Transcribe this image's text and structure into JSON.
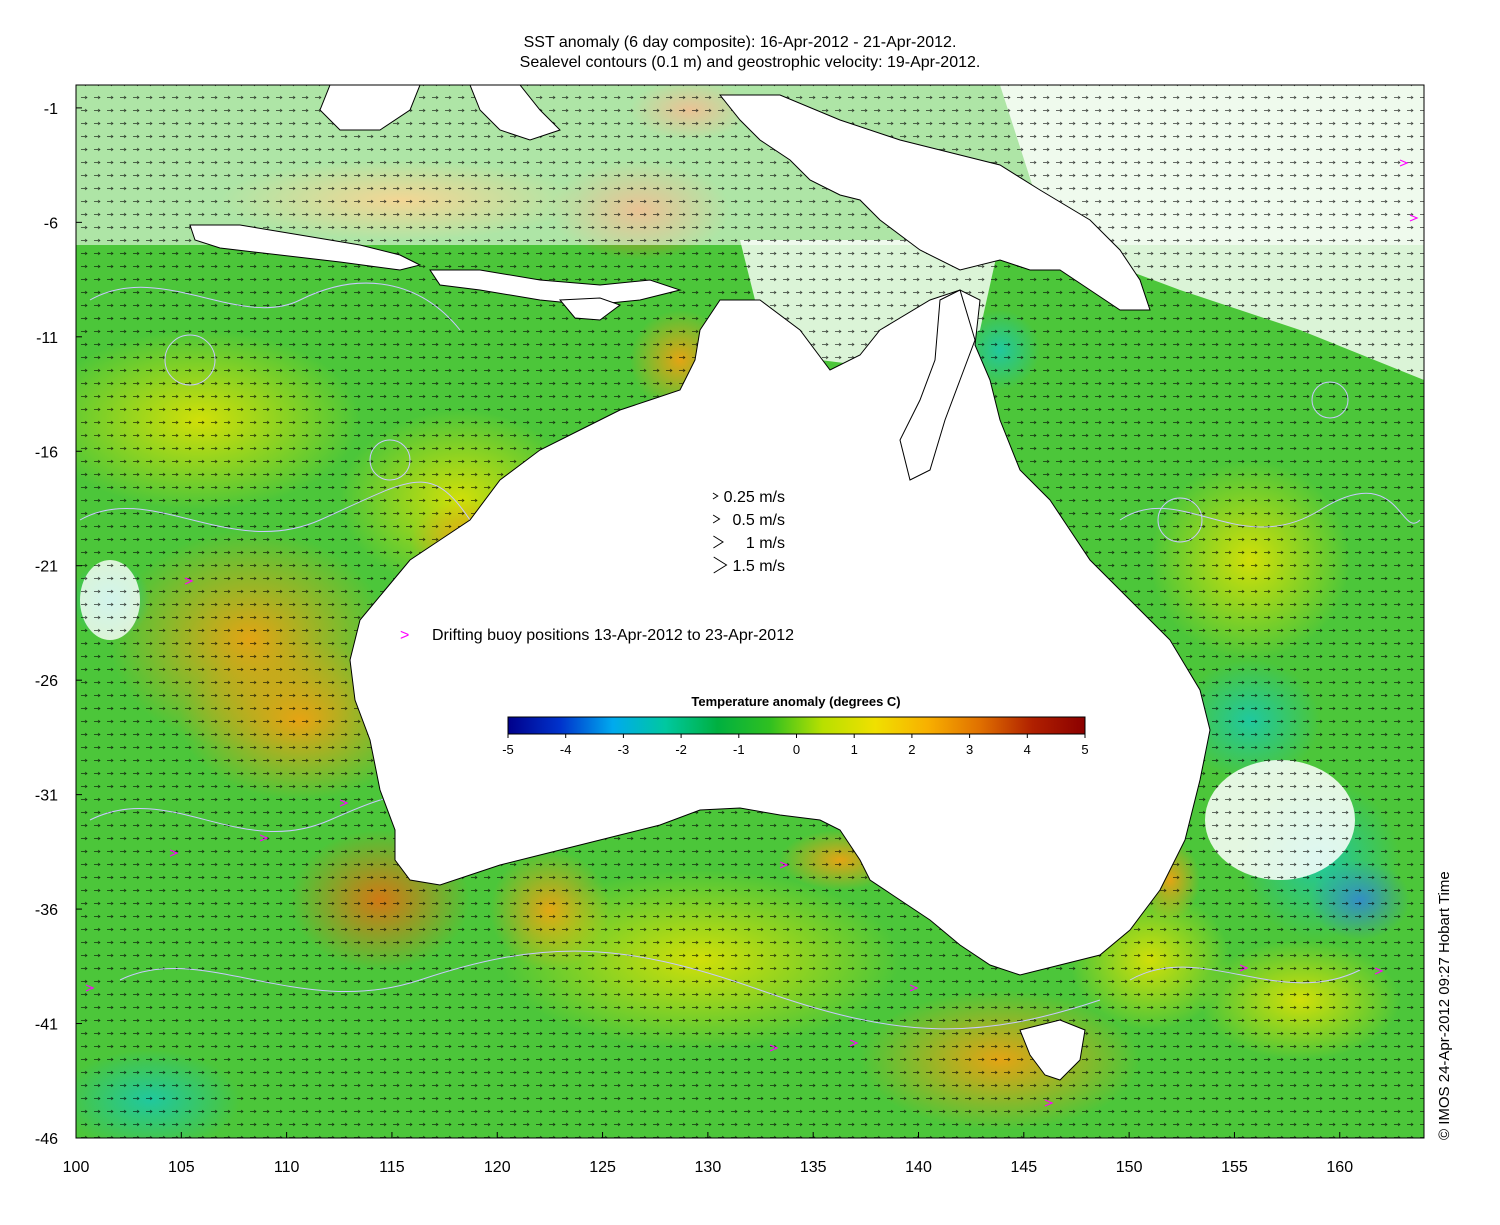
{
  "titles": {
    "line1": "SST anomaly (6 day composite): 16-Apr-2012 - 21-Apr-2012.",
    "line2": "Sealevel contours (0.1 m) and geostrophic velocity: 19-Apr-2012."
  },
  "axes": {
    "lon_ticks": [
      100,
      105,
      110,
      115,
      120,
      125,
      130,
      135,
      140,
      145,
      150,
      155,
      160
    ],
    "lat_ticks": [
      -1,
      -6,
      -11,
      -16,
      -21,
      -26,
      -31,
      -36,
      -41,
      -46
    ],
    "lon_range": [
      100,
      164
    ],
    "lat_range": [
      -46,
      0
    ]
  },
  "velocity_legend": [
    {
      "label": "0.25 m/s",
      "speed": 0.25
    },
    {
      "label": "0.5 m/s",
      "speed": 0.5
    },
    {
      "label": "1 m/s",
      "speed": 1
    },
    {
      "label": "1.5 m/s",
      "speed": 1.5
    }
  ],
  "buoy_legend": {
    "symbol": ">",
    "label": "Drifting buoy positions 13-Apr-2012 to 23-Apr-2012",
    "color": "#ff00ff"
  },
  "colorbar": {
    "title": "Temperature anomaly (degrees C)",
    "min": -5,
    "max": 5,
    "ticks": [
      -5,
      -4,
      -3,
      -2,
      -1,
      0,
      1,
      2,
      3,
      4,
      5
    ],
    "colors": [
      "#00008b",
      "#0033cc",
      "#00aaee",
      "#00c8a0",
      "#00b040",
      "#30c020",
      "#b8e000",
      "#f0e000",
      "#f8b000",
      "#e07000",
      "#b02000",
      "#8b0000"
    ]
  },
  "credit": "© IMOS 24-Apr-2012 09:27 Hobart Time",
  "colors": {
    "ocean_base": "#4cc63a",
    "land": "#ffffff",
    "coast": "#000000",
    "contour": "#c8c8ff"
  }
}
